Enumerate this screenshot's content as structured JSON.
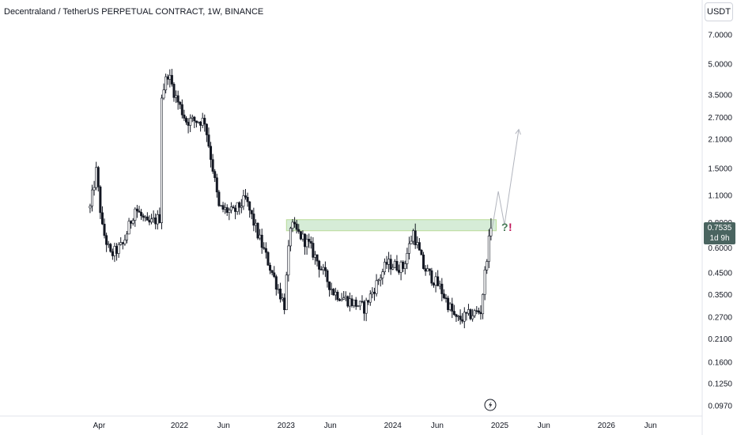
{
  "header": {
    "title": "Decentraland / TetherUS PERPETUAL CONTRACT, 1W, BINANCE",
    "currency": "USDT"
  },
  "last_price": {
    "value": "0.7535",
    "countdown": "1d 9h"
  },
  "annotation": {
    "q": "?",
    "ex": "!"
  },
  "colors": {
    "up": "#131722",
    "down": "#131722",
    "zone_fill": "#c8e6c9",
    "zone_stroke": "#8bc34a",
    "projection": "#b2b5be",
    "question": "#4a7c59",
    "exclamation": "#c2185b",
    "price_label": "#4a6460",
    "grid_divider": "#e0e3eb"
  },
  "chart_data": {
    "type": "candlestick",
    "symbol": "MANAUSDT.P",
    "scale": "log",
    "price_ticks": [
      "7.0000",
      "5.0000",
      "3.5000",
      "2.7000",
      "2.1000",
      "1.5000",
      "1.1000",
      "0.8000",
      "0.6000",
      "0.4500",
      "0.3500",
      "0.2700",
      "0.2100",
      "0.1600",
      "0.1250",
      "0.0970"
    ],
    "time_ticks": [
      "Apr",
      "2022",
      "Jun",
      "2023",
      "Jun",
      "2024",
      "Jun",
      "2025",
      "Jun",
      "2026",
      "Jun"
    ],
    "ylim": [
      0.09,
      8.5
    ],
    "resistance_zone": {
      "from_date": "2023-01-02",
      "to_date": "2024-12-20",
      "low": 0.73,
      "high": 0.83
    },
    "projection": [
      {
        "date": "2024-12-06",
        "price": 0.75
      },
      {
        "date": "2024-12-27",
        "price": 1.15
      },
      {
        "date": "2025-01-17",
        "price": 0.78
      },
      {
        "date": "2025-03-07",
        "price": 2.35
      }
    ],
    "anchors": [
      {
        "date": "2021-03-01",
        "price": 0.95
      },
      {
        "date": "2021-03-22",
        "price": 1.45
      },
      {
        "date": "2021-04-12",
        "price": 0.75
      },
      {
        "date": "2021-05-10",
        "price": 0.55
      },
      {
        "date": "2021-06-21",
        "price": 0.62
      },
      {
        "date": "2021-08-02",
        "price": 0.95
      },
      {
        "date": "2021-09-13",
        "price": 0.78
      },
      {
        "date": "2021-10-25",
        "price": 0.85
      },
      {
        "date": "2021-11-01",
        "price": 3.5
      },
      {
        "date": "2021-11-22",
        "price": 4.5
      },
      {
        "date": "2021-12-20",
        "price": 3.4
      },
      {
        "date": "2022-01-24",
        "price": 2.6
      },
      {
        "date": "2022-03-28",
        "price": 2.6
      },
      {
        "date": "2022-04-25",
        "price": 1.5
      },
      {
        "date": "2022-05-16",
        "price": 0.95
      },
      {
        "date": "2022-07-04",
        "price": 0.9
      },
      {
        "date": "2022-08-15",
        "price": 1.05
      },
      {
        "date": "2022-09-26",
        "price": 0.7
      },
      {
        "date": "2022-11-14",
        "price": 0.45
      },
      {
        "date": "2022-12-26",
        "price": 0.31
      },
      {
        "date": "2023-01-16",
        "price": 0.78
      },
      {
        "date": "2023-03-20",
        "price": 0.62
      },
      {
        "date": "2023-06-12",
        "price": 0.36
      },
      {
        "date": "2023-08-14",
        "price": 0.32
      },
      {
        "date": "2023-09-25",
        "price": 0.3
      },
      {
        "date": "2023-12-11",
        "price": 0.5
      },
      {
        "date": "2024-02-05",
        "price": 0.48
      },
      {
        "date": "2024-03-11",
        "price": 0.72
      },
      {
        "date": "2024-04-15",
        "price": 0.48
      },
      {
        "date": "2024-06-10",
        "price": 0.38
      },
      {
        "date": "2024-08-05",
        "price": 0.26
      },
      {
        "date": "2024-09-02",
        "price": 0.27
      },
      {
        "date": "2024-10-28",
        "price": 0.29
      },
      {
        "date": "2024-11-18",
        "price": 0.55
      },
      {
        "date": "2024-12-02",
        "price": 0.7535
      }
    ]
  }
}
